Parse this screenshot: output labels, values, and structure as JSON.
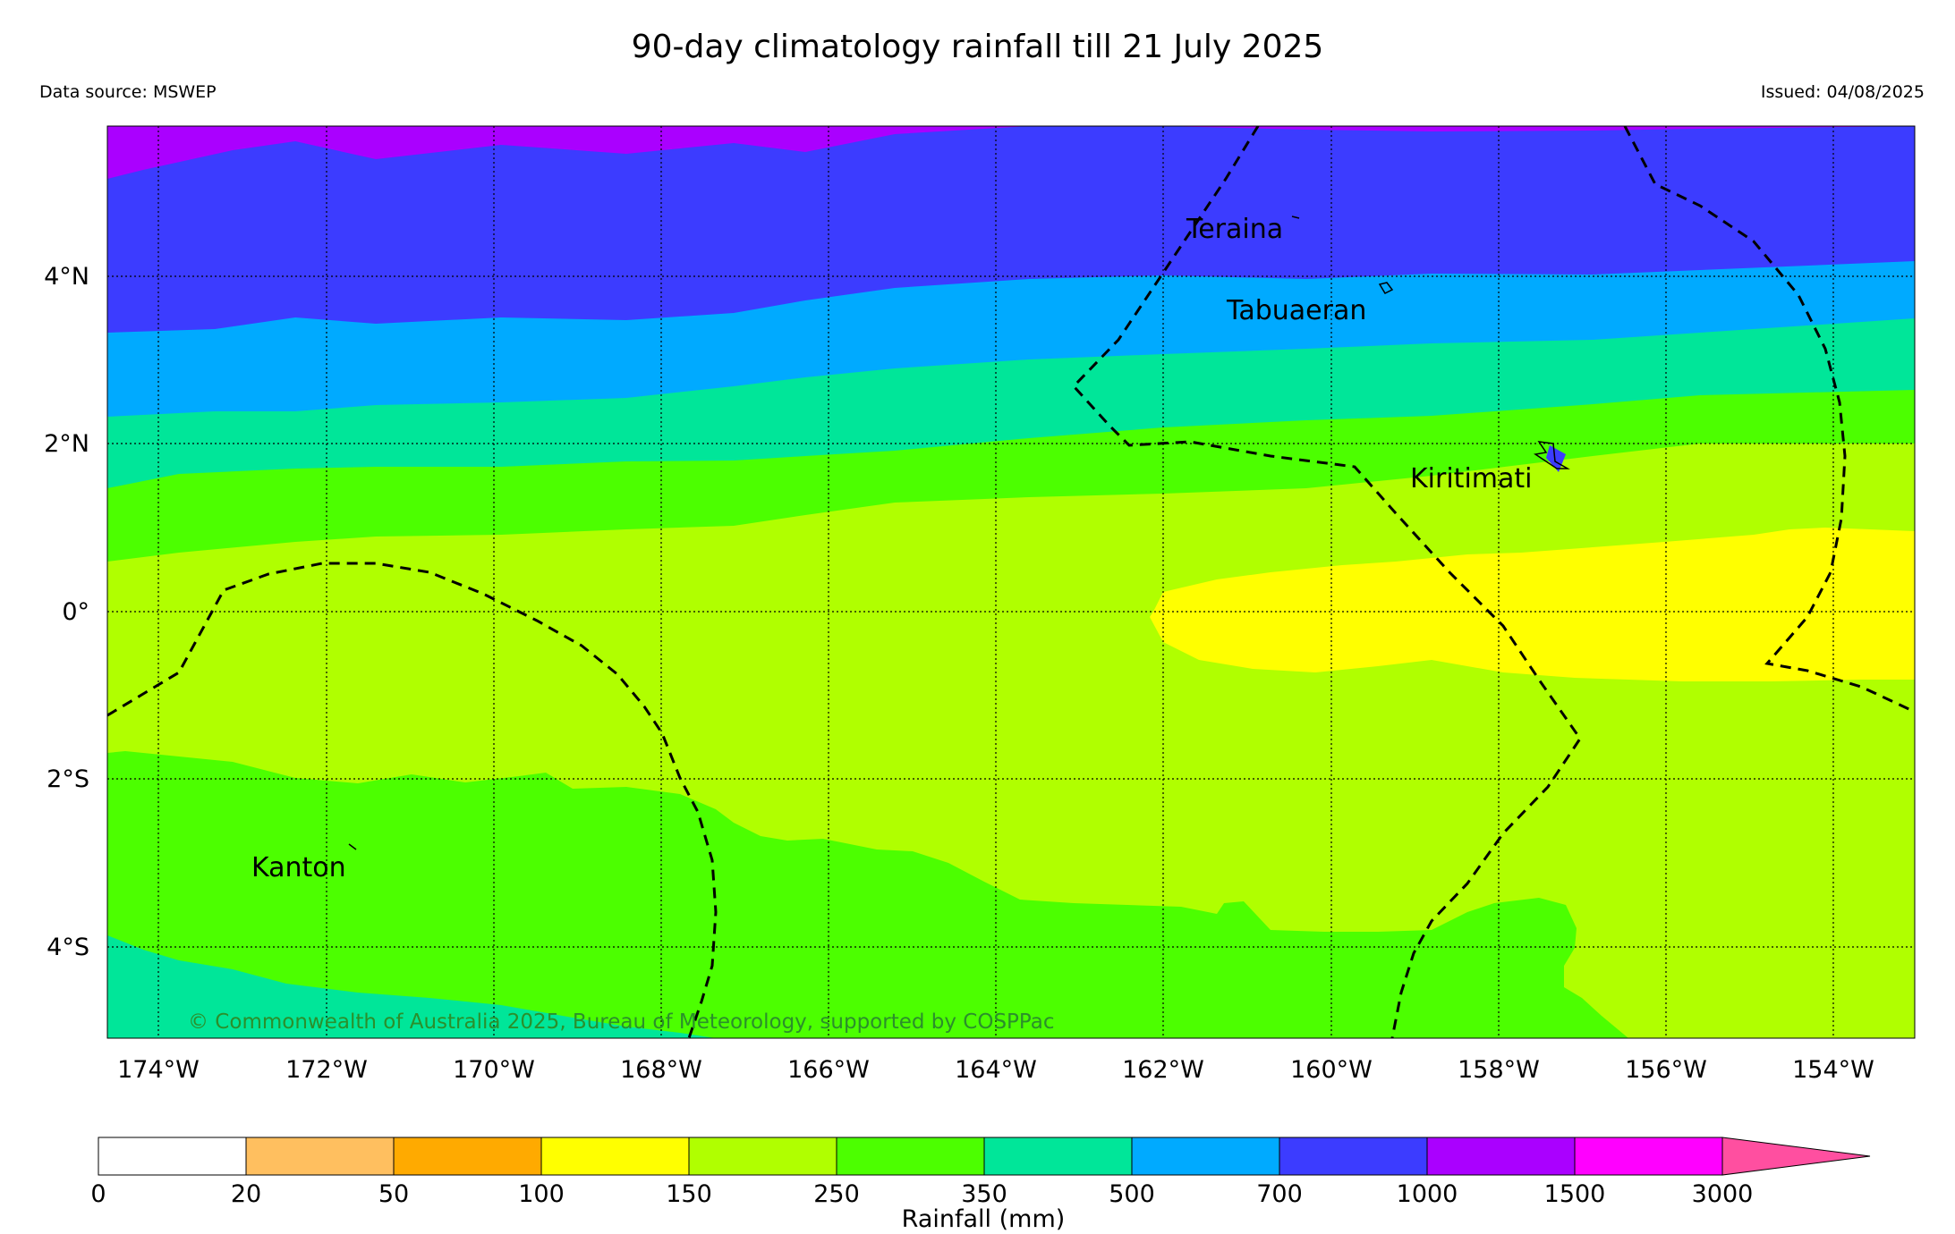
{
  "title": "90-day climatology rainfall till 21 July 2025",
  "source": "Data source: MSWEP",
  "issued": "Issued: 04/08/2025",
  "copyright": "© Commonwealth of Australia 2025, Bureau of Meteorology, supported by COSPPac",
  "map": {
    "lat_ticks": [
      "4°N",
      "2°N",
      "0°",
      "2°S",
      "4°S"
    ],
    "lon_ticks": [
      "174°W",
      "172°W",
      "170°W",
      "168°W",
      "166°W",
      "164°W",
      "162°W",
      "160°W",
      "158°W",
      "156°W",
      "154°W"
    ],
    "places": [
      "Teraina",
      "Tabuaeran",
      "Kiritimati",
      "Kanton"
    ]
  },
  "colorbar": {
    "label": "Rainfall (mm)",
    "ticks": [
      "0",
      "20",
      "50",
      "100",
      "150",
      "250",
      "350",
      "500",
      "700",
      "1000",
      "1500",
      "3000"
    ],
    "colors": [
      "#ffffff",
      "#ffbf5f",
      "#ffaa00",
      "#ffff00",
      "#b0ff00",
      "#4cff00",
      "#00e699",
      "#00aaff",
      "#3c3cff",
      "#aa00ff",
      "#ff00ff",
      "#ff4fa0"
    ]
  }
}
